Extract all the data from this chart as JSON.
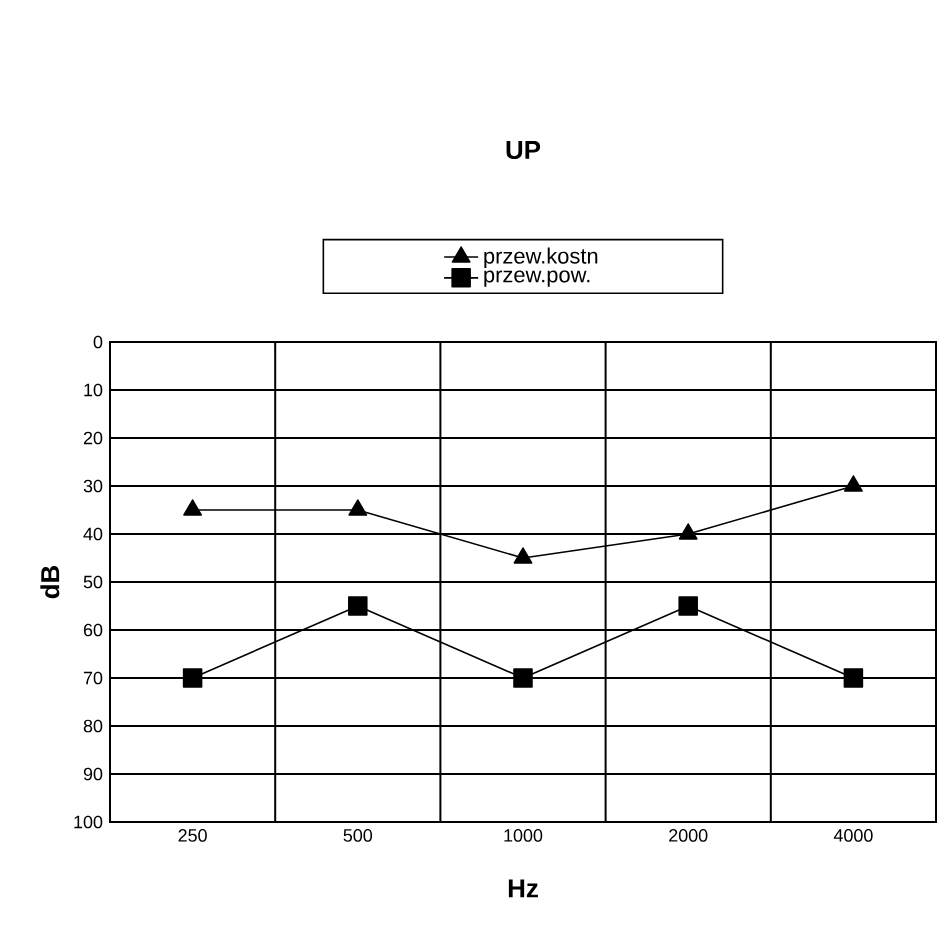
{
  "chart_data": {
    "type": "line",
    "title": "UP",
    "xlabel": "Hz",
    "ylabel": "dB",
    "categories": [
      "250",
      "500",
      "1000",
      "2000",
      "4000"
    ],
    "series": [
      {
        "name": "przew.kostn",
        "color": "#000000",
        "marker": "triangle",
        "values": [
          35,
          35,
          45,
          40,
          30
        ]
      },
      {
        "name": "przew.pow.",
        "color": "#000000",
        "marker": "square",
        "values": [
          70,
          55,
          70,
          55,
          70
        ]
      }
    ],
    "ylim": [
      100,
      0
    ],
    "yticks": [
      0,
      10,
      20,
      30,
      40,
      50,
      60,
      70,
      80,
      90,
      100
    ],
    "grid": true,
    "legend": "top",
    "line_style": "solid"
  }
}
